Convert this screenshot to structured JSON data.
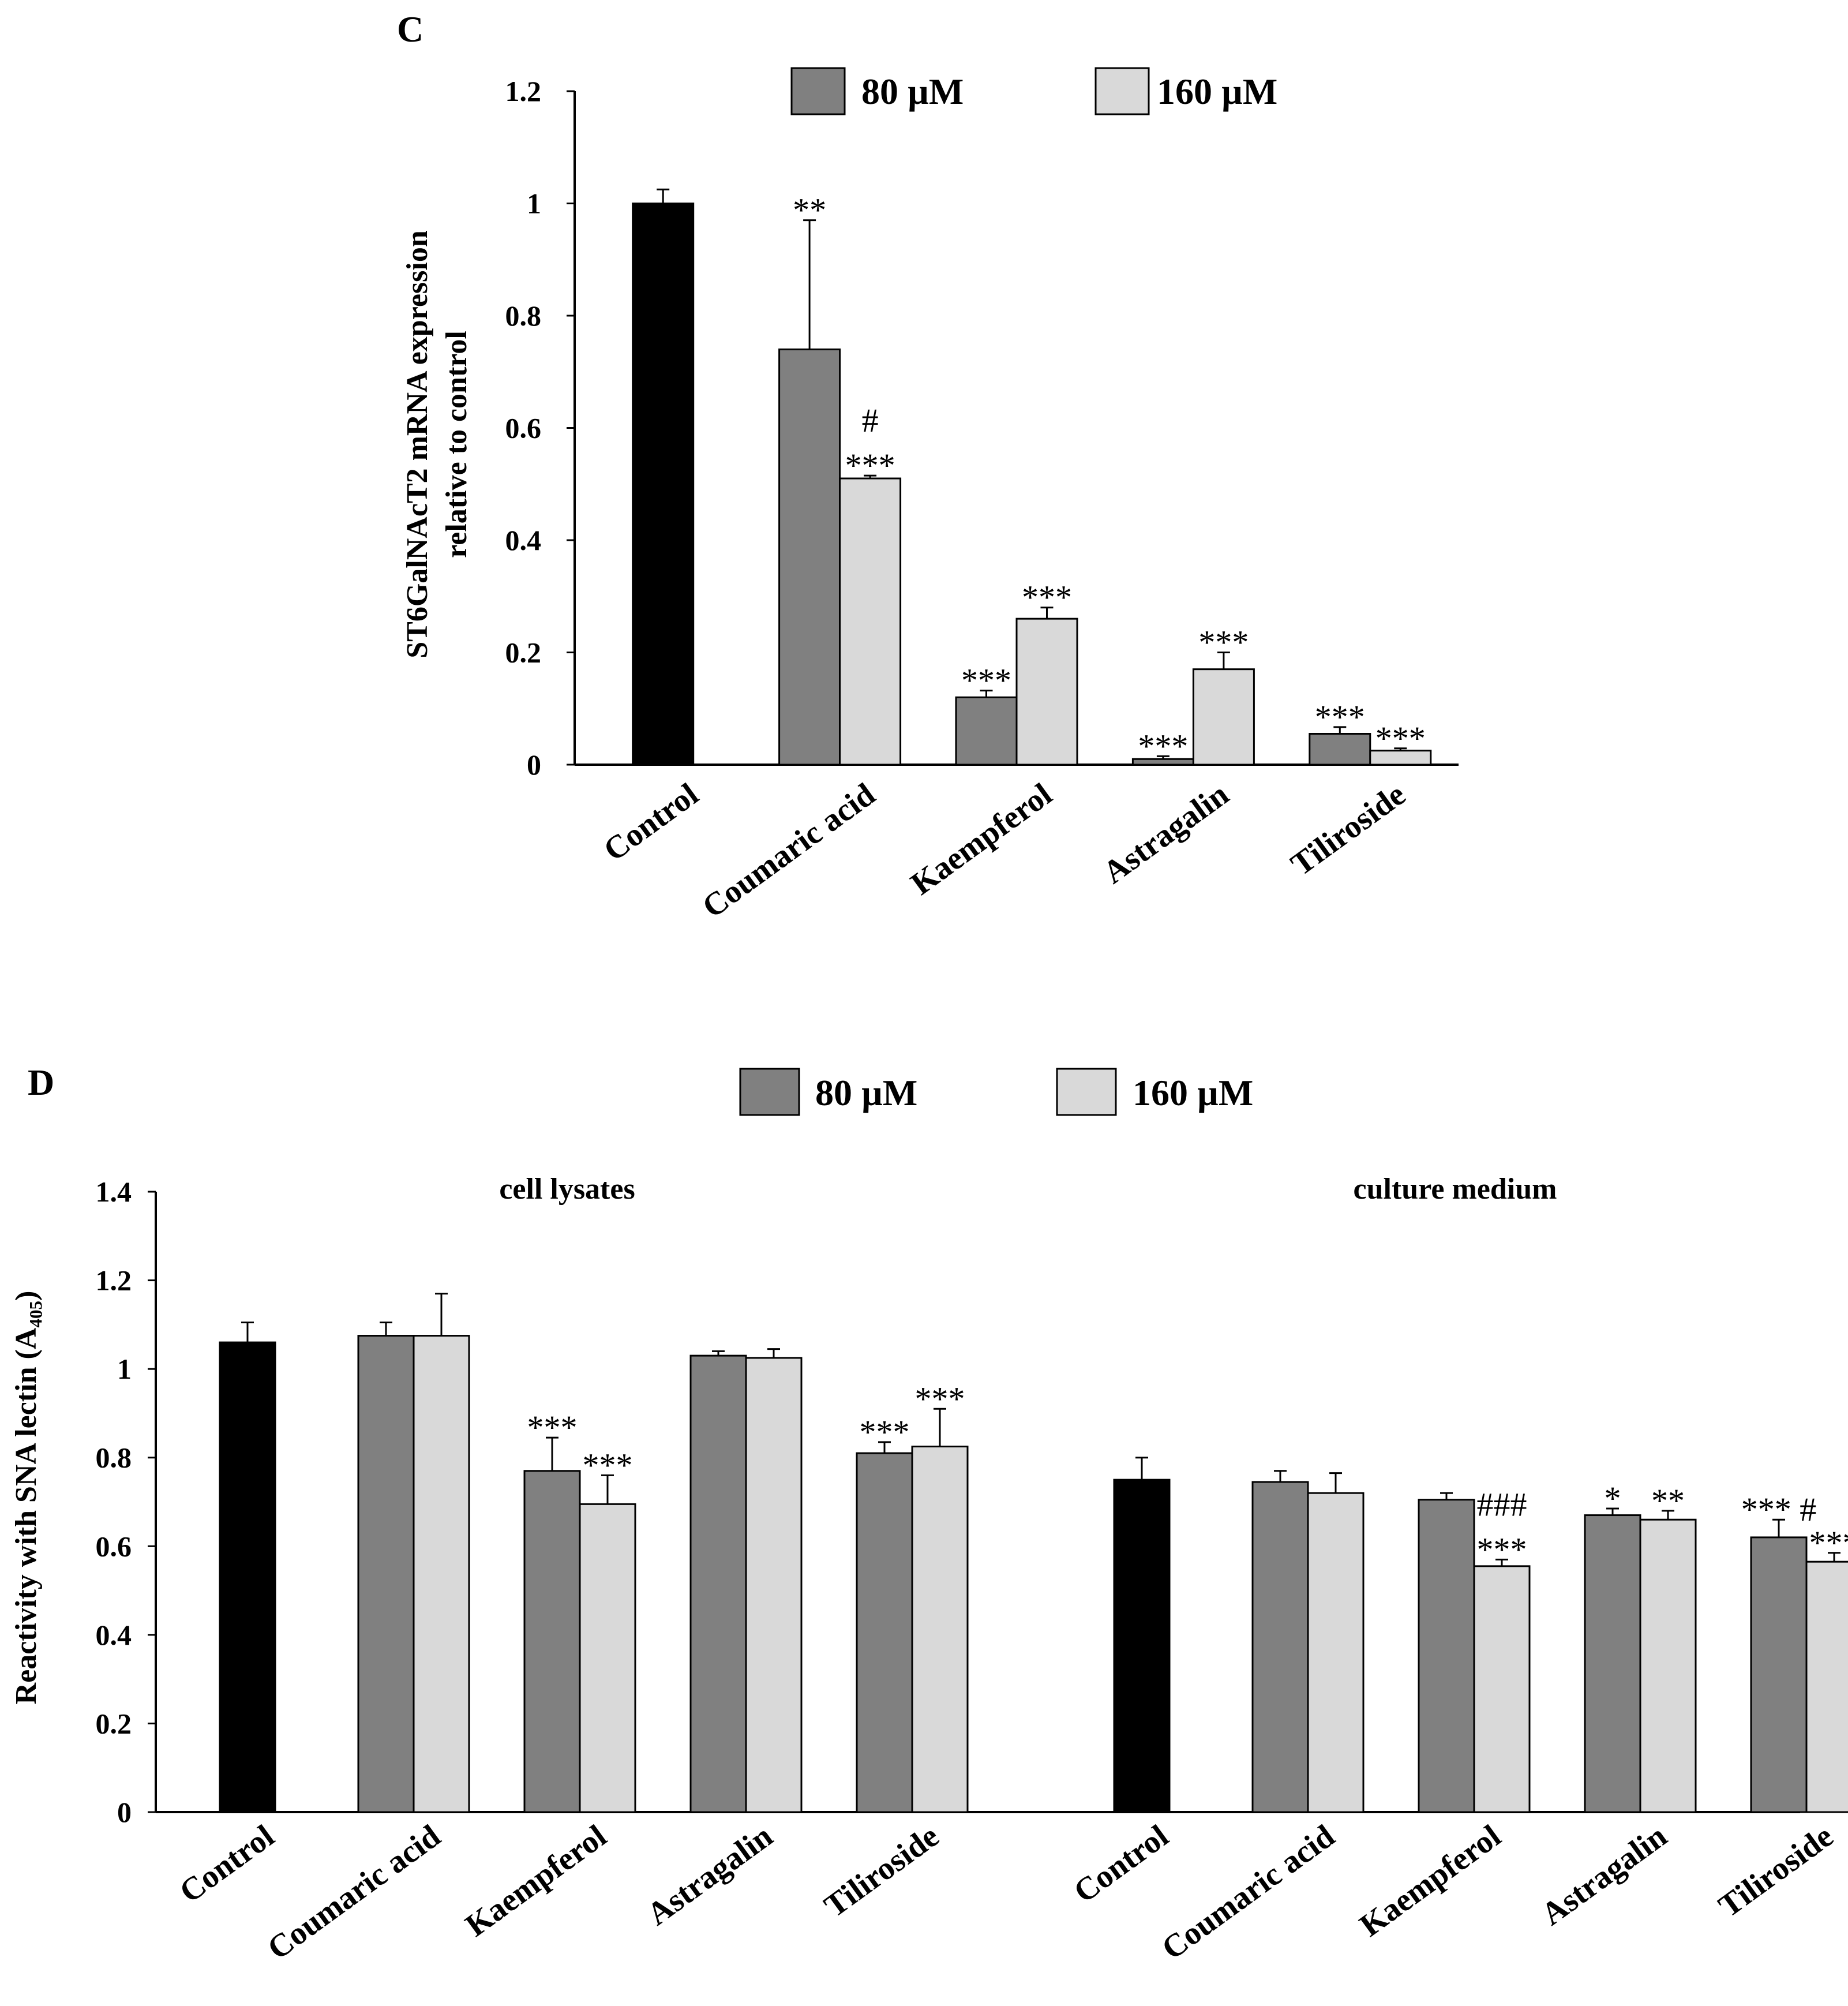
{
  "chart_data": [
    {
      "panel": "C",
      "type": "bar",
      "title": "",
      "ylabel": [
        "ST6GalNAcT2  mRNA expression",
        "relative to control"
      ],
      "xlabel": "",
      "ylim": [
        0,
        1.2
      ],
      "yticks": [
        0,
        0.2,
        0.4,
        0.6,
        0.8,
        1,
        1.2
      ],
      "ytick_labels": [
        "0",
        "0.2",
        "0.4",
        "0.6",
        "0.8",
        "1",
        "1.2"
      ],
      "legend": [
        "80 µM",
        "160 µM"
      ],
      "legend_position": "top",
      "categories": [
        "Control",
        "Coumaric  acid",
        "Kaempferol",
        "Astragalin",
        "Tiliroside"
      ],
      "control": {
        "value": 1.0,
        "error": 0.025
      },
      "series": [
        {
          "name": "80 µM",
          "color": "#808080",
          "values": [
            null,
            0.74,
            0.12,
            0.01,
            0.055
          ],
          "errors": [
            null,
            0.23,
            0.012,
            0.005,
            0.012
          ],
          "annotations": [
            null,
            [
              "**"
            ],
            [
              "***"
            ],
            [
              "***"
            ],
            [
              "***"
            ]
          ]
        },
        {
          "name": "160 µM",
          "color": "#d9d9d9",
          "values": [
            null,
            0.51,
            0.26,
            0.17,
            0.025
          ],
          "errors": [
            null,
            0.005,
            0.02,
            0.03,
            0.004
          ],
          "annotations": [
            null,
            [
              "#",
              "***"
            ],
            [
              "***"
            ],
            [
              "***"
            ],
            [
              "***"
            ]
          ]
        }
      ]
    },
    {
      "panel": "D",
      "type": "bar",
      "title": "",
      "ylabel": "Reactivity with  SNA lectin (A₄₀₅)",
      "xlabel": "",
      "ylim": [
        0,
        1.4
      ],
      "yticks": [
        0,
        0.2,
        0.4,
        0.6,
        0.8,
        1,
        1.2,
        1.4
      ],
      "ytick_labels": [
        "0",
        "0.2",
        "0.4",
        "0.6",
        "0.8",
        "1",
        "1.2",
        "1.4"
      ],
      "legend": [
        "80 µM",
        "160 µM"
      ],
      "legend_position": "top",
      "groups": [
        {
          "label": "cell lysates",
          "categories": [
            "Control",
            "Coumaric  acid",
            "Kaempferol",
            "Astragalin",
            "Tiliroside"
          ],
          "control": {
            "value": 1.06,
            "error": 0.045
          },
          "series": [
            {
              "name": "80 µM",
              "values": [
                null,
                1.075,
                0.77,
                1.03,
                0.81
              ],
              "errors": [
                null,
                0.03,
                0.075,
                0.01,
                0.025
              ],
              "annotations": [
                null,
                [],
                [
                  "***"
                ],
                [],
                [
                  "***"
                ]
              ]
            },
            {
              "name": "160 µM",
              "values": [
                null,
                1.075,
                0.695,
                1.025,
                0.825
              ],
              "errors": [
                null,
                0.095,
                0.065,
                0.02,
                0.085
              ],
              "annotations": [
                null,
                [],
                [
                  "***"
                ],
                [],
                [
                  "***"
                ]
              ]
            }
          ]
        },
        {
          "label": "culture  medium",
          "categories": [
            "Control",
            "Coumaric  acid",
            "Kaempferol",
            "Astragalin",
            "Tiliroside"
          ],
          "control": {
            "value": 0.75,
            "error": 0.05
          },
          "series": [
            {
              "name": "80 µM",
              "values": [
                null,
                0.745,
                0.705,
                0.67,
                0.62
              ],
              "errors": [
                null,
                0.025,
                0.015,
                0.015,
                0.04
              ],
              "annotations": [
                null,
                [],
                [],
                [
                  "*"
                ],
                [
                  "***  #"
                ]
              ]
            },
            {
              "name": "160 µM",
              "values": [
                null,
                0.72,
                0.555,
                0.66,
                0.565
              ],
              "errors": [
                null,
                0.045,
                0.015,
                0.02,
                0.02
              ],
              "annotations": [
                null,
                [],
                [
                  "###",
                  "***"
                ],
                [
                  "**"
                ],
                [
                  "***"
                ]
              ]
            }
          ]
        }
      ]
    }
  ]
}
